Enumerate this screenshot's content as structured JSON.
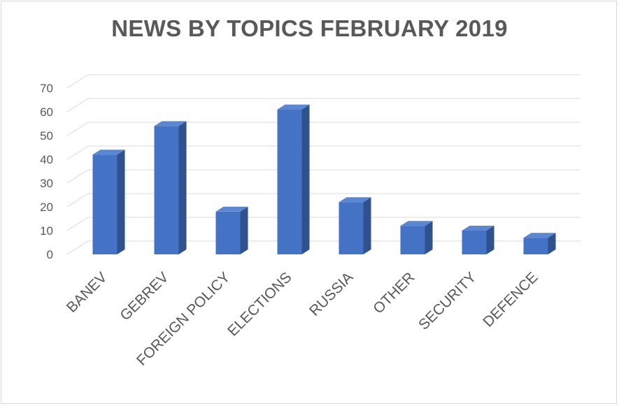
{
  "chart_data": {
    "type": "bar",
    "style": "3d-column",
    "title": "NEWS BY TOPICS FEBRUARY 2019",
    "xlabel": "",
    "ylabel": "",
    "categories": [
      "BANEV",
      "GEBREV",
      "FOREIGN POLICY",
      "ELECTIONS",
      "RUSSIA",
      "OTHER",
      "SECURITY",
      "DEFENCE"
    ],
    "values": [
      42,
      54,
      18,
      61,
      22,
      12,
      10,
      7
    ],
    "ylim": [
      0,
      70
    ],
    "yticks": [
      "0",
      "10",
      "20",
      "30",
      "40",
      "50",
      "60",
      "70"
    ],
    "grid": true,
    "legend": "none",
    "colors": {
      "bar_front": "#4472c4",
      "bar_side": "#2f528f",
      "bar_top": "#5b86d1",
      "grid": "#d9d9d9",
      "text": "#595959"
    }
  }
}
